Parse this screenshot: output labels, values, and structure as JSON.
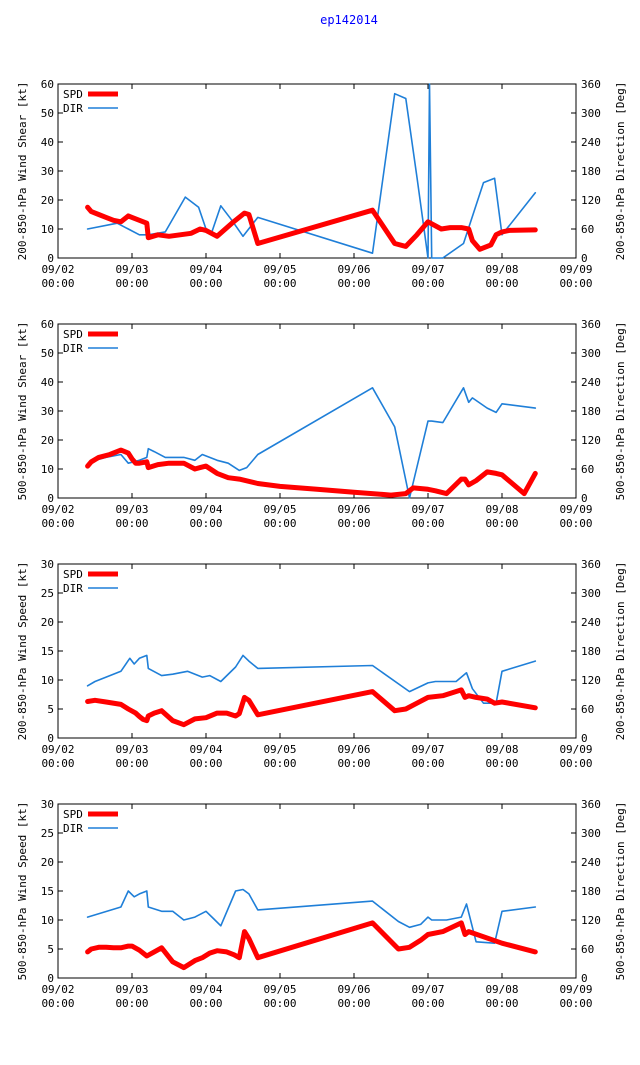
{
  "title": "ep142014",
  "colors": {
    "spd": "#ff0000",
    "dir": "#1f7fd8",
    "title": "#0000ff",
    "axis": "#000000",
    "grid": "#999999"
  },
  "x_ticks": [
    {
      "d": 0,
      "l1": "09/02",
      "l2": "00:00"
    },
    {
      "d": 1,
      "l1": "09/03",
      "l2": "00:00"
    },
    {
      "d": 2,
      "l1": "09/04",
      "l2": "00:00"
    },
    {
      "d": 3,
      "l1": "09/05",
      "l2": "00:00"
    },
    {
      "d": 4,
      "l1": "09/06",
      "l2": "00:00"
    },
    {
      "d": 5,
      "l1": "09/07",
      "l2": "00:00"
    },
    {
      "d": 6,
      "l1": "09/08",
      "l2": "00:00"
    },
    {
      "d": 7,
      "l1": "09/09",
      "l2": "00:00"
    }
  ],
  "chart_data": [
    {
      "type": "line",
      "ylabel": "200-850-hPa Wind Shear [kt]",
      "y2label": "200-850-hPa Direction [Deg]",
      "ylim": [
        0,
        60
      ],
      "yticks": [
        0,
        10,
        20,
        30,
        40,
        50,
        60
      ],
      "y2lim": [
        0,
        360
      ],
      "y2ticks": [
        0,
        60,
        120,
        180,
        240,
        300,
        360
      ],
      "xlim": [
        0,
        7
      ],
      "legend": [
        "SPD",
        "DIR"
      ],
      "series": [
        {
          "name": "SPD",
          "axis": "left",
          "x": [
            0.4,
            0.45,
            0.55,
            0.65,
            0.75,
            0.85,
            0.95,
            1.0,
            1.1,
            1.2,
            1.22,
            1.35,
            1.5,
            1.65,
            1.8,
            1.92,
            2.0,
            2.15,
            2.35,
            2.52,
            2.58,
            2.7,
            4.25,
            4.55,
            4.7,
            4.85,
            5.0,
            5.18,
            5.3,
            5.45,
            5.55,
            5.6,
            5.7,
            5.85,
            5.92,
            6.0,
            6.1,
            6.45
          ],
          "values": [
            17.5,
            16,
            15,
            14,
            13,
            12.5,
            14.5,
            14,
            13,
            12,
            7,
            8,
            7.5,
            8,
            8.5,
            10,
            9.5,
            7.5,
            12,
            15.5,
            15,
            5,
            16.5,
            5,
            4,
            8,
            12.5,
            10,
            10.5,
            10.5,
            10,
            6,
            3,
            4.5,
            8,
            9,
            9.5,
            9.7
          ]
        },
        {
          "name": "DIR",
          "axis": "right",
          "x": [
            0.4,
            0.8,
            0.95,
            1.1,
            1.22,
            1.45,
            1.72,
            1.9,
            2.0,
            2.08,
            2.2,
            2.35,
            2.5,
            2.7,
            4.25,
            4.55,
            4.7,
            4.85,
            5.0,
            5.02,
            5.05,
            5.2,
            5.48,
            5.75,
            5.9,
            6.0,
            6.45
          ],
          "values": [
            60,
            72,
            60,
            48,
            48,
            54,
            126,
            105,
            60,
            54,
            108,
            78,
            45,
            84,
            10,
            340,
            330,
            168,
            0,
            360,
            0,
            0,
            30,
            156,
            165,
            48,
            135
          ]
        }
      ]
    },
    {
      "type": "line",
      "ylabel": "500-850-hPa Wind Shear [kt]",
      "y2label": "500-850-hPa Direction [Deg]",
      "ylim": [
        0,
        60
      ],
      "yticks": [
        0,
        10,
        20,
        30,
        40,
        50,
        60
      ],
      "y2lim": [
        0,
        360
      ],
      "y2ticks": [
        0,
        60,
        120,
        180,
        240,
        300,
        360
      ],
      "xlim": [
        0,
        7
      ],
      "legend": [
        "SPD",
        "DIR"
      ],
      "series": [
        {
          "name": "SPD",
          "axis": "left",
          "x": [
            0.4,
            0.45,
            0.55,
            0.7,
            0.85,
            0.95,
            1.0,
            1.05,
            1.1,
            1.2,
            1.22,
            1.35,
            1.5,
            1.7,
            1.85,
            1.92,
            2.0,
            2.15,
            2.3,
            2.45,
            2.7,
            3.0,
            3.5,
            4.0,
            4.5,
            4.7,
            4.8,
            5.0,
            5.1,
            5.25,
            5.45,
            5.5,
            5.55,
            5.65,
            5.8,
            5.92,
            6.0,
            6.3,
            6.45
          ],
          "values": [
            11,
            12.5,
            14,
            15,
            16.5,
            15.5,
            13.5,
            12,
            12,
            12.5,
            10.5,
            11.5,
            12,
            12,
            10,
            10.5,
            11,
            8.5,
            7,
            6.5,
            5,
            4,
            3,
            2,
            1,
            1.5,
            3.5,
            3,
            2.5,
            1.5,
            6.5,
            6.5,
            4.5,
            6,
            9,
            8.5,
            8,
            1.5,
            8.5
          ]
        },
        {
          "name": "DIR",
          "axis": "right",
          "x": [
            0.4,
            0.5,
            0.65,
            0.85,
            0.95,
            1.1,
            1.2,
            1.22,
            1.3,
            1.45,
            1.7,
            1.85,
            1.95,
            2.05,
            2.15,
            2.3,
            2.45,
            2.55,
            2.7,
            4.25,
            4.55,
            4.75,
            5.0,
            5.05,
            5.2,
            5.48,
            5.55,
            5.6,
            5.8,
            5.92,
            6.0,
            6.45
          ],
          "values": [
            66,
            78,
            84,
            90,
            72,
            78,
            84,
            102,
            96,
            84,
            84,
            78,
            90,
            84,
            78,
            72,
            57,
            63,
            90,
            228,
            147,
            0,
            159,
            159,
            156,
            228,
            198,
            207,
            186,
            177,
            195,
            186
          ]
        }
      ]
    },
    {
      "type": "line",
      "ylabel": "200-850-hPa Wind Speed [kt]",
      "y2label": "200-850-hPa Direction [Deg]",
      "ylim": [
        0,
        30
      ],
      "yticks": [
        0,
        5,
        10,
        15,
        20,
        25,
        30
      ],
      "y2lim": [
        0,
        360
      ],
      "y2ticks": [
        0,
        60,
        120,
        180,
        240,
        300,
        360
      ],
      "xlim": [
        0,
        7
      ],
      "legend": [
        "SPD",
        "DIR"
      ],
      "series": [
        {
          "name": "SPD",
          "axis": "left",
          "x": [
            0.4,
            0.5,
            0.65,
            0.85,
            0.95,
            1.05,
            1.1,
            1.15,
            1.2,
            1.22,
            1.3,
            1.4,
            1.55,
            1.7,
            1.85,
            2.0,
            2.15,
            2.28,
            2.4,
            2.45,
            2.52,
            2.58,
            2.7,
            4.25,
            4.55,
            4.7,
            4.85,
            5.0,
            5.2,
            5.45,
            5.5,
            5.55,
            5.65,
            5.8,
            5.9,
            6.0,
            6.45
          ],
          "values": [
            6.3,
            6.5,
            6.2,
            5.8,
            5,
            4.3,
            3.7,
            3.2,
            3.0,
            3.8,
            4.3,
            4.7,
            3.0,
            2.3,
            3.3,
            3.5,
            4.3,
            4.3,
            3.8,
            4.2,
            7.0,
            6.5,
            4.0,
            8.0,
            4.7,
            5.0,
            6.0,
            7.0,
            7.3,
            8.3,
            7.0,
            7.3,
            7.0,
            6.7,
            6.0,
            6.2,
            5.2
          ]
        },
        {
          "name": "DIR",
          "axis": "right",
          "x": [
            0.4,
            0.5,
            0.65,
            0.85,
            0.97,
            1.03,
            1.1,
            1.2,
            1.22,
            1.4,
            1.55,
            1.75,
            1.95,
            2.05,
            2.2,
            2.4,
            2.5,
            2.58,
            2.7,
            4.25,
            4.75,
            5.0,
            5.1,
            5.25,
            5.38,
            5.52,
            5.6,
            5.75,
            5.92,
            6.0,
            6.45
          ],
          "values": [
            108,
            117,
            126,
            138,
            165,
            153,
            165,
            171,
            144,
            129,
            132,
            138,
            126,
            129,
            117,
            147,
            171,
            159,
            144,
            150,
            96,
            114,
            117,
            117,
            117,
            135,
            102,
            72,
            72,
            138,
            159
          ]
        }
      ]
    },
    {
      "type": "line",
      "ylabel": "500-850-hPa Wind Speed [kt]",
      "y2label": "500-850-hPa Direction [Deg]",
      "ylim": [
        0,
        30
      ],
      "yticks": [
        0,
        5,
        10,
        15,
        20,
        25,
        30
      ],
      "y2lim": [
        0,
        360
      ],
      "y2ticks": [
        0,
        60,
        120,
        180,
        240,
        300,
        360
      ],
      "xlim": [
        0,
        7
      ],
      "legend": [
        "SPD",
        "DIR"
      ],
      "series": [
        {
          "name": "SPD",
          "axis": "left",
          "x": [
            0.4,
            0.45,
            0.55,
            0.65,
            0.75,
            0.85,
            0.95,
            1.0,
            1.1,
            1.2,
            1.3,
            1.4,
            1.55,
            1.7,
            1.85,
            1.95,
            2.05,
            2.15,
            2.28,
            2.38,
            2.45,
            2.52,
            2.58,
            2.7,
            4.25,
            4.6,
            4.75,
            4.9,
            5.0,
            5.2,
            5.45,
            5.5,
            5.55,
            6.0,
            6.45
          ],
          "values": [
            4.5,
            5.0,
            5.3,
            5.3,
            5.2,
            5.2,
            5.5,
            5.5,
            4.8,
            3.8,
            4.5,
            5.2,
            2.8,
            1.8,
            3.0,
            3.5,
            4.3,
            4.7,
            4.5,
            4.0,
            3.5,
            8.0,
            6.8,
            3.5,
            9.5,
            5.0,
            5.3,
            6.5,
            7.5,
            8.0,
            9.5,
            7.5,
            8.0,
            6.0,
            4.5
          ]
        },
        {
          "name": "DIR",
          "axis": "right",
          "x": [
            0.4,
            0.85,
            0.95,
            1.03,
            1.1,
            1.2,
            1.22,
            1.4,
            1.55,
            1.7,
            1.85,
            2.0,
            2.1,
            2.2,
            2.4,
            2.5,
            2.58,
            2.7,
            4.25,
            4.6,
            4.75,
            4.9,
            5.0,
            5.05,
            5.25,
            5.45,
            5.52,
            5.65,
            5.9,
            6.0,
            6.45
          ],
          "values": [
            126,
            147,
            180,
            168,
            174,
            180,
            147,
            138,
            138,
            120,
            126,
            138,
            123,
            108,
            180,
            183,
            174,
            141,
            159,
            117,
            105,
            111,
            126,
            120,
            120,
            126,
            153,
            75,
            72,
            138,
            147
          ]
        }
      ]
    }
  ]
}
